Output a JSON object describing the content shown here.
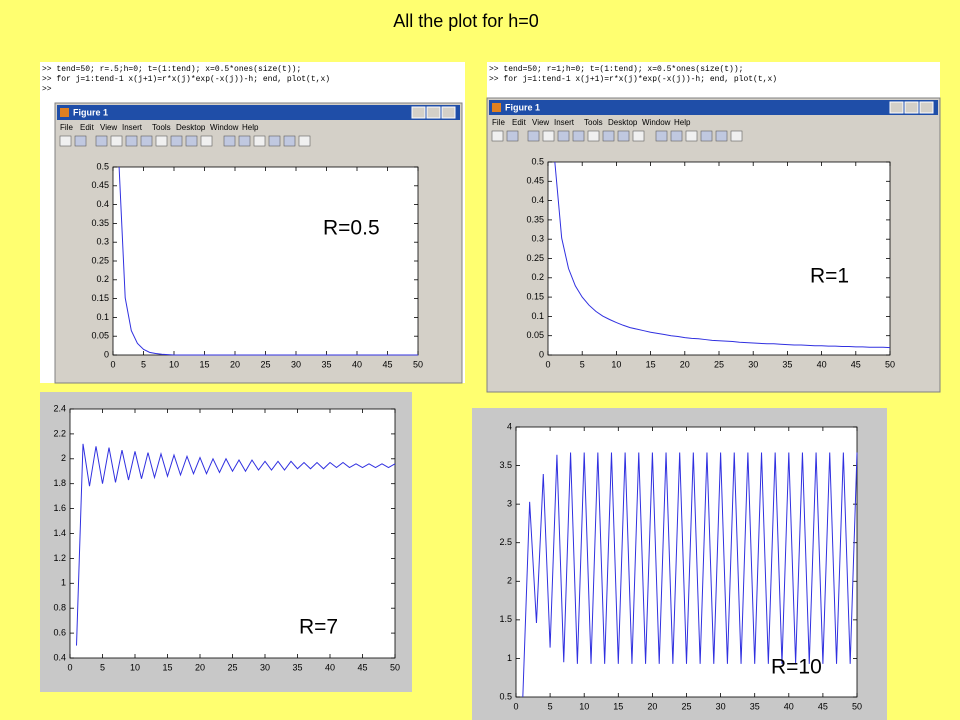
{
  "slide": {
    "title": "All the plot for h=0"
  },
  "windows": [
    {
      "commands": [
        ">> tend=50; r=.5;h=0; t=(1:tend); x=0.5*ones(size(t));",
        ">> for j=1:tend-1 x(j+1)=r*x(j)*exp(-x(j))-h; end, plot(t,x)",
        ">>"
      ],
      "figure_title": "Figure 1",
      "menu": [
        "File",
        "Edit",
        "View",
        "Insert",
        "Tools",
        "Desktop",
        "Window",
        "Help"
      ]
    },
    {
      "commands": [
        ">> tend=50; r=1;h=0; t=(1:tend); x=0.5*ones(size(t));",
        ">> for j=1:tend-1 x(j+1)=r*x(j)*exp(-x(j))-h; end, plot(t,x)"
      ],
      "figure_title": "Figure 1",
      "menu": [
        "File",
        "Edit",
        "View",
        "Insert",
        "Tools",
        "Desktop",
        "Window",
        "Help"
      ]
    }
  ],
  "chart_data": [
    {
      "type": "line",
      "annotation": "R=0.5",
      "x": [
        1,
        2,
        3,
        4,
        5,
        6,
        7,
        8,
        9,
        10,
        11,
        12,
        13,
        14,
        15,
        16,
        17,
        18,
        19,
        20,
        21,
        22,
        23,
        24,
        25,
        26,
        27,
        28,
        29,
        30,
        31,
        32,
        33,
        34,
        35,
        36,
        37,
        38,
        39,
        40,
        41,
        42,
        43,
        44,
        45,
        46,
        47,
        48,
        49,
        50
      ],
      "series": [
        {
          "color": "#3030e0",
          "values": [
            0.5,
            0.152,
            0.065,
            0.031,
            0.015,
            0.007,
            0.004,
            0.002,
            0.001,
            0,
            0,
            0,
            0,
            0,
            0,
            0,
            0,
            0,
            0,
            0,
            0,
            0,
            0,
            0,
            0,
            0,
            0,
            0,
            0,
            0,
            0,
            0,
            0,
            0,
            0,
            0,
            0,
            0,
            0,
            0,
            0,
            0,
            0,
            0,
            0,
            0,
            0,
            0,
            0,
            0
          ]
        }
      ],
      "xlim": [
        0,
        50
      ],
      "xticks": [
        0,
        5,
        10,
        15,
        20,
        25,
        30,
        35,
        40,
        45,
        50
      ],
      "ylim": [
        0,
        0.5
      ],
      "yticks": [
        0,
        0.05,
        0.1,
        0.15,
        0.2,
        0.25,
        0.3,
        0.35,
        0.4,
        0.45,
        0.5
      ]
    },
    {
      "type": "line",
      "annotation": "R=1",
      "x": [
        1,
        2,
        3,
        4,
        5,
        6,
        7,
        8,
        9,
        10,
        11,
        12,
        13,
        14,
        15,
        16,
        17,
        18,
        19,
        20,
        21,
        22,
        23,
        24,
        25,
        26,
        27,
        28,
        29,
        30,
        31,
        32,
        33,
        34,
        35,
        36,
        37,
        38,
        39,
        40,
        41,
        42,
        43,
        44,
        45,
        46,
        47,
        48,
        49,
        50
      ],
      "series": [
        {
          "color": "#3030e0",
          "values": [
            0.5,
            0.303,
            0.224,
            0.179,
            0.15,
            0.129,
            0.113,
            0.101,
            0.092,
            0.084,
            0.077,
            0.071,
            0.067,
            0.063,
            0.059,
            0.056,
            0.053,
            0.05,
            0.048,
            0.045,
            0.043,
            0.042,
            0.04,
            0.038,
            0.037,
            0.036,
            0.035,
            0.033,
            0.032,
            0.031,
            0.03,
            0.029,
            0.029,
            0.028,
            0.027,
            0.026,
            0.026,
            0.025,
            0.024,
            0.024,
            0.023,
            0.023,
            0.022,
            0.022,
            0.021,
            0.021,
            0.02,
            0.02,
            0.02,
            0.019
          ]
        }
      ],
      "xlim": [
        0,
        50
      ],
      "xticks": [
        0,
        5,
        10,
        15,
        20,
        25,
        30,
        35,
        40,
        45,
        50
      ],
      "ylim": [
        0,
        0.5
      ],
      "yticks": [
        0,
        0.05,
        0.1,
        0.15,
        0.2,
        0.25,
        0.3,
        0.35,
        0.4,
        0.45,
        0.5
      ]
    },
    {
      "type": "line",
      "annotation": "R=7",
      "x": [
        1,
        2,
        3,
        4,
        5,
        6,
        7,
        8,
        9,
        10,
        11,
        12,
        13,
        14,
        15,
        16,
        17,
        18,
        19,
        20,
        21,
        22,
        23,
        24,
        25,
        26,
        27,
        28,
        29,
        30,
        31,
        32,
        33,
        34,
        35,
        36,
        37,
        38,
        39,
        40,
        41,
        42,
        43,
        44,
        45,
        46,
        47,
        48,
        49,
        50
      ],
      "series": [
        {
          "color": "#3030e0",
          "values": [
            0.5,
            2.12,
            1.78,
            2.1,
            1.8,
            2.09,
            1.81,
            2.07,
            1.83,
            2.06,
            1.84,
            2.05,
            1.85,
            2.04,
            1.86,
            2.03,
            1.87,
            2.02,
            1.88,
            2.01,
            1.88,
            2.0,
            1.89,
            2.0,
            1.9,
            1.99,
            1.9,
            1.99,
            1.91,
            1.98,
            1.91,
            1.98,
            1.91,
            1.98,
            1.92,
            1.97,
            1.92,
            1.97,
            1.92,
            1.97,
            1.93,
            1.97,
            1.93,
            1.96,
            1.93,
            1.96,
            1.93,
            1.96,
            1.93,
            1.96
          ]
        }
      ],
      "xlim": [
        0,
        50
      ],
      "xticks": [
        0,
        5,
        10,
        15,
        20,
        25,
        30,
        35,
        40,
        45,
        50
      ],
      "ylim": [
        0.4,
        2.4
      ],
      "yticks": [
        0.4,
        0.6,
        0.8,
        1,
        1.2,
        1.4,
        1.6,
        1.8,
        2,
        2.2,
        2.4
      ]
    },
    {
      "type": "line",
      "annotation": "R=10",
      "x": [
        1,
        2,
        3,
        4,
        5,
        6,
        7,
        8,
        9,
        10,
        11,
        12,
        13,
        14,
        15,
        16,
        17,
        18,
        19,
        20,
        21,
        22,
        23,
        24,
        25,
        26,
        27,
        28,
        29,
        30,
        31,
        32,
        33,
        34,
        35,
        36,
        37,
        38,
        39,
        40,
        41,
        42,
        43,
        44,
        45,
        46,
        47,
        48,
        49,
        50
      ],
      "series": [
        {
          "color": "#3030e0",
          "values": [
            0.5,
            3.03,
            1.46,
            3.39,
            1.14,
            3.64,
            0.95,
            3.67,
            0.93,
            3.67,
            0.93,
            3.67,
            0.93,
            3.67,
            0.93,
            3.67,
            0.93,
            3.67,
            0.93,
            3.67,
            0.93,
            3.67,
            0.93,
            3.67,
            0.93,
            3.67,
            0.93,
            3.67,
            0.93,
            3.67,
            0.93,
            3.67,
            0.93,
            3.67,
            0.93,
            3.67,
            0.93,
            3.67,
            0.93,
            3.67,
            0.93,
            3.67,
            0.93,
            3.67,
            0.93,
            3.67,
            0.93,
            3.67,
            0.93,
            3.67
          ]
        }
      ],
      "xlim": [
        0,
        50
      ],
      "xticks": [
        0,
        5,
        10,
        15,
        20,
        25,
        30,
        35,
        40,
        45,
        50
      ],
      "ylim": [
        0.5,
        4
      ],
      "yticks": [
        0.5,
        1,
        1.5,
        2,
        2.5,
        3,
        3.5,
        4
      ]
    }
  ]
}
